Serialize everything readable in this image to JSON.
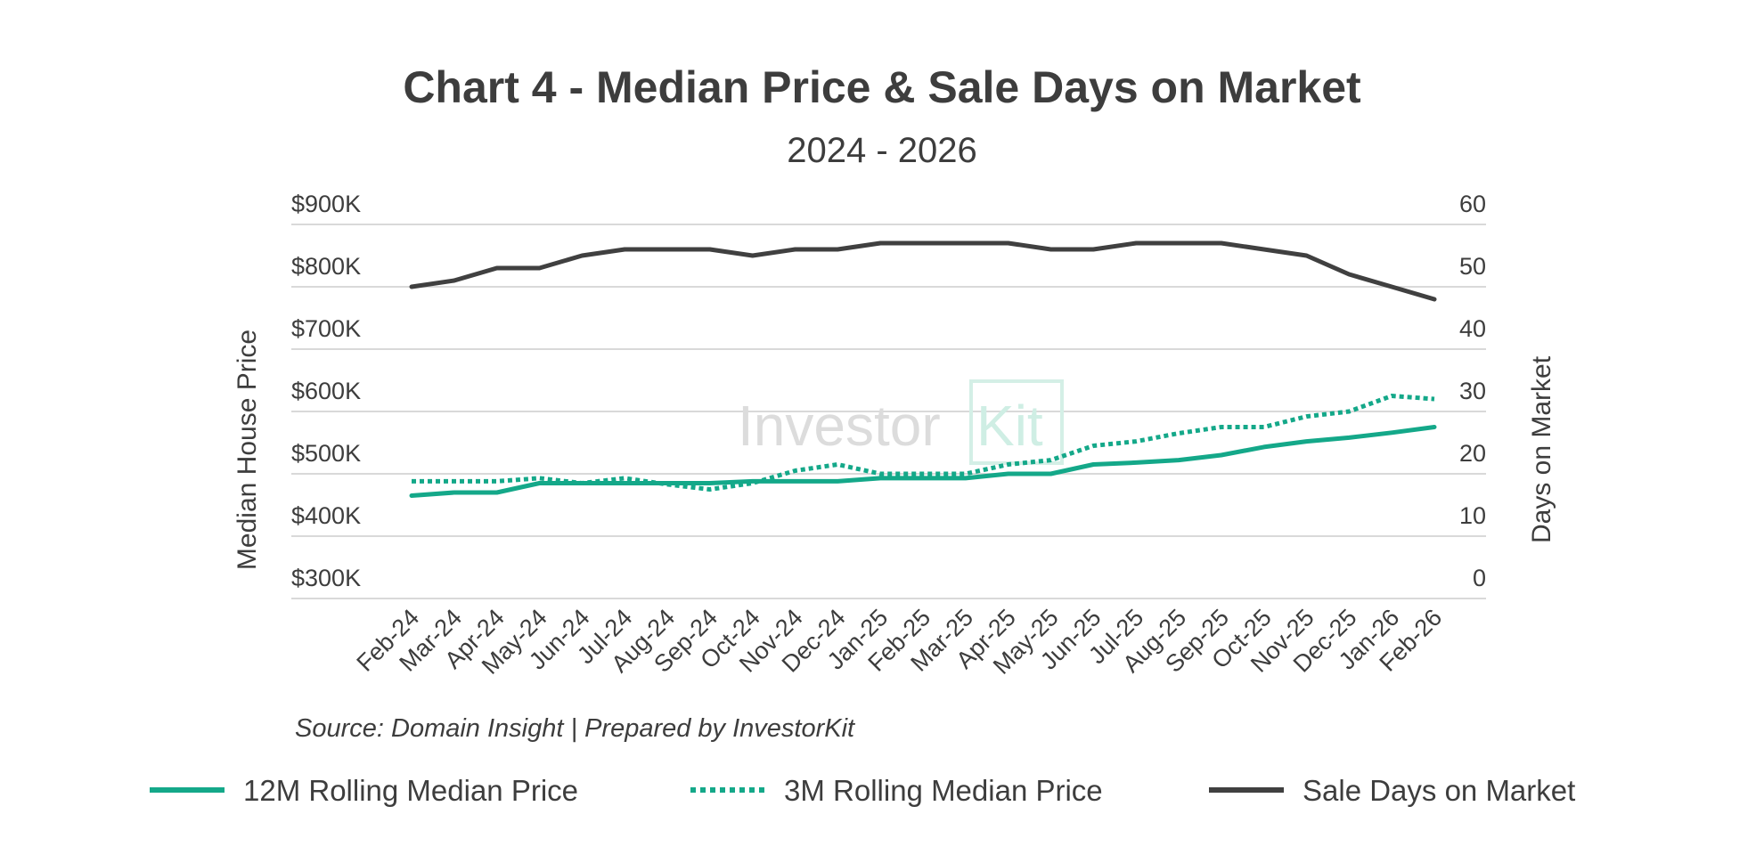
{
  "chart_data": {
    "type": "line",
    "title": "Chart 4 - Median Price & Sale Days on Market",
    "subtitle": "2024 - 2026",
    "source": "Source: Domain Insight | Prepared by InvestorKit",
    "watermark": {
      "part1": "Investor",
      "part2": "Kit"
    },
    "categories": [
      "Feb-24",
      "Mar-24",
      "Apr-24",
      "May-24",
      "Jun-24",
      "Jul-24",
      "Aug-24",
      "Sep-24",
      "Oct-24",
      "Nov-24",
      "Dec-24",
      "Jan-25",
      "Feb-25",
      "Mar-25",
      "Apr-25",
      "May-25",
      "Jun-25",
      "Jul-25",
      "Aug-25",
      "Sep-25",
      "Oct-25",
      "Nov-25",
      "Dec-25",
      "Jan-26",
      "Feb-26"
    ],
    "y_left": {
      "label": "Median House Price",
      "ylim": [
        300000,
        900000
      ],
      "ticks": [
        300000,
        400000,
        500000,
        600000,
        700000,
        800000,
        900000
      ],
      "tick_labels": [
        "$300K",
        "$400K",
        "$500K",
        "$600K",
        "$700K",
        "$800K",
        "$900K"
      ]
    },
    "y_right": {
      "label": "Days on Market",
      "ylim": [
        0,
        60
      ],
      "ticks": [
        0,
        10,
        20,
        30,
        40,
        50,
        60
      ],
      "tick_labels": [
        "0",
        "10",
        "20",
        "30",
        "40",
        "50",
        "60"
      ]
    },
    "grid": true,
    "legend_position": "bottom",
    "series": [
      {
        "name": "12M Rolling Median Price",
        "axis": "left",
        "style": "solid",
        "color": "#14a889",
        "values": [
          465000,
          470000,
          470000,
          485000,
          485000,
          485000,
          485000,
          485000,
          488000,
          488000,
          488000,
          493000,
          493000,
          493000,
          500000,
          500000,
          515000,
          518000,
          522000,
          530000,
          543000,
          552000,
          558000,
          566000,
          575000
        ]
      },
      {
        "name": "3M Rolling Median Price",
        "axis": "left",
        "style": "dotted",
        "color": "#14a889",
        "values": [
          488000,
          488000,
          488000,
          493000,
          485000,
          493000,
          483000,
          475000,
          485000,
          505000,
          515000,
          500000,
          500000,
          500000,
          515000,
          522000,
          545000,
          552000,
          565000,
          575000,
          575000,
          592000,
          600000,
          625000,
          620000
        ]
      },
      {
        "name": "Sale Days on Market",
        "axis": "right",
        "style": "solid",
        "color": "#404040",
        "values": [
          50,
          51,
          53,
          53,
          55,
          56,
          56,
          56,
          55,
          56,
          56,
          57,
          57,
          57,
          57,
          56,
          56,
          57,
          57,
          57,
          56,
          55,
          52,
          50,
          48
        ]
      }
    ]
  }
}
